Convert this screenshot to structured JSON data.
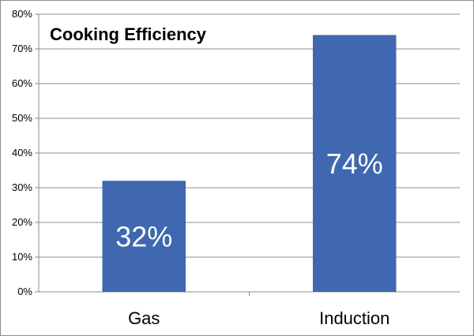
{
  "chart_data": {
    "type": "bar",
    "title": "Cooking Efficiency",
    "categories": [
      "Gas",
      "Induction"
    ],
    "values": [
      32,
      74
    ],
    "data_labels": [
      "32%",
      "74%"
    ],
    "y_ticks": [
      "0%",
      "10%",
      "20%",
      "30%",
      "40%",
      "50%",
      "60%",
      "70%",
      "80%"
    ],
    "ylim": [
      0,
      80
    ],
    "grid": true,
    "legend": "none",
    "bar_color": "#3f68b0"
  }
}
